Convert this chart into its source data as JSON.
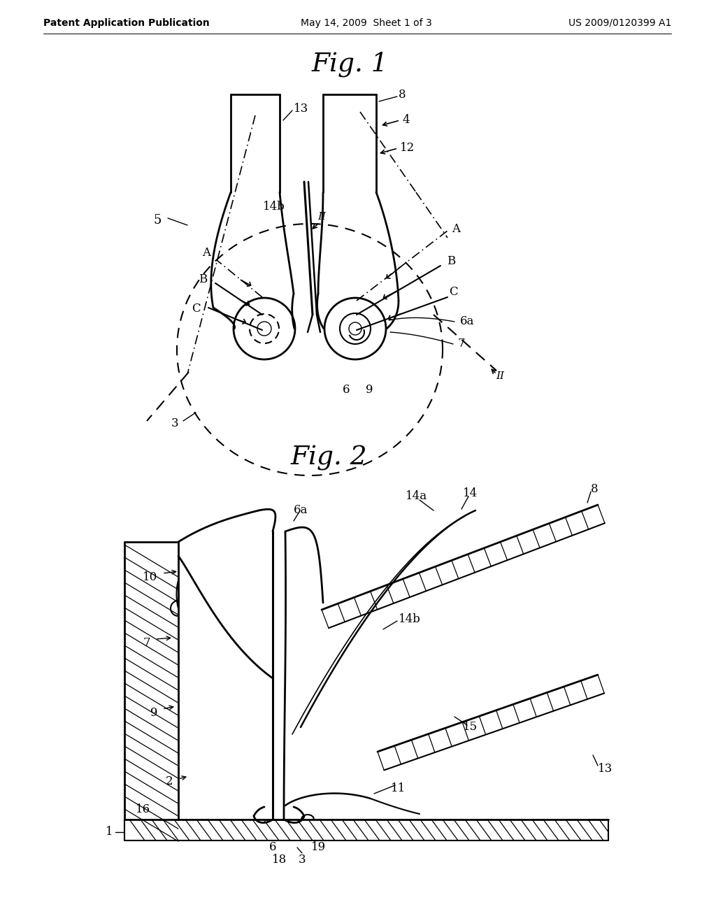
{
  "background_color": "#ffffff",
  "header_left": "Patent Application Publication",
  "header_center": "May 14, 2009  Sheet 1 of 3",
  "header_right": "US 2009/0120399 A1",
  "fig1_title": "Fig. 1",
  "fig2_title": "Fig. 2"
}
